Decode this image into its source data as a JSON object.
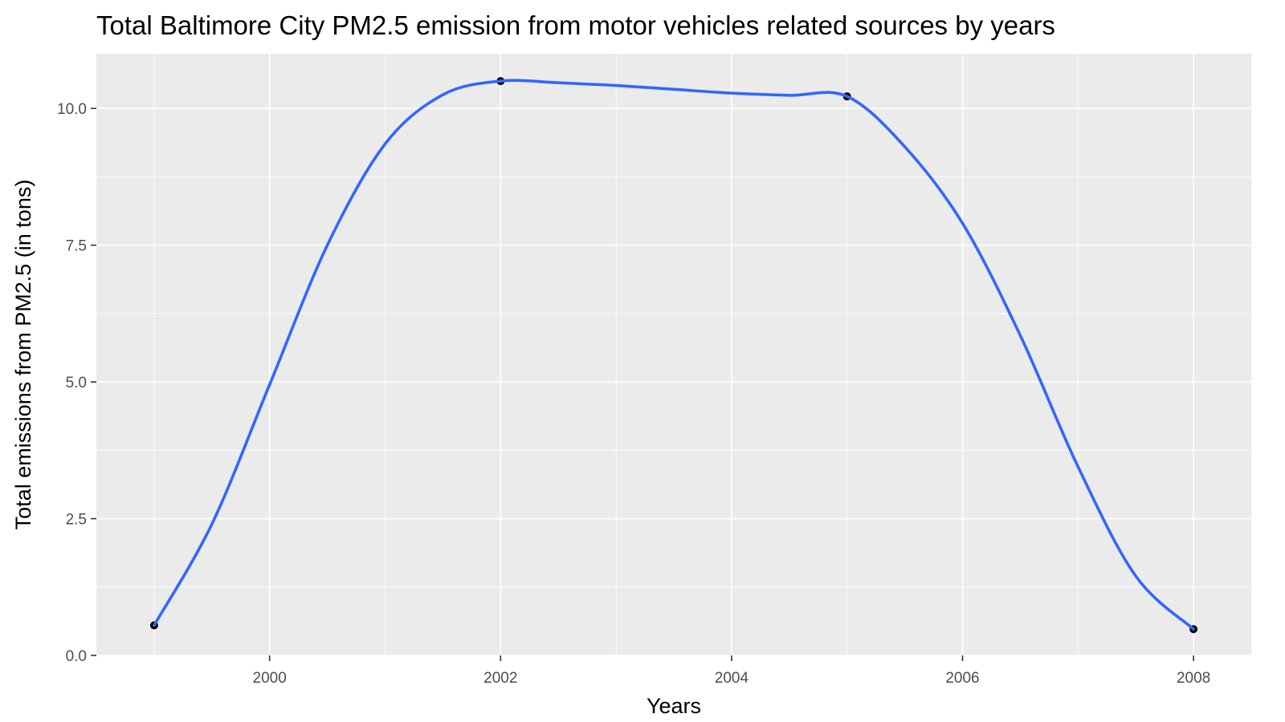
{
  "chart_data": {
    "type": "line",
    "title": "Total Baltimore City PM2.5 emission from motor vehicles related sources by years",
    "xlabel": "Years",
    "ylabel": "Total emissions from PM2.5 (in tons)",
    "xlim": [
      1998.5,
      2008.5
    ],
    "ylim": [
      0,
      11
    ],
    "x_ticks": [
      2000,
      2002,
      2004,
      2006,
      2008
    ],
    "y_ticks": [
      0,
      2.5,
      5,
      7.5,
      10
    ],
    "y_tick_labels": [
      "0.0",
      "2.5",
      "5.0",
      "7.5",
      "10.0"
    ],
    "x_minor_ticks": [
      1999,
      2001,
      2003,
      2005,
      2007
    ],
    "y_minor_ticks": [
      1.25,
      3.75,
      6.25,
      8.75
    ],
    "grid": true,
    "points": {
      "x": [
        1999,
        2002,
        2005,
        2008
      ],
      "y": [
        0.55,
        10.5,
        10.22,
        0.48
      ]
    },
    "smooth": {
      "x": [
        1999,
        1999.5,
        2000,
        2000.5,
        2001,
        2001.5,
        2002,
        2002.5,
        2003,
        2003.5,
        2004,
        2004.5,
        2005,
        2005.5,
        2006,
        2006.5,
        2007,
        2007.5,
        2008
      ],
      "y": [
        0.55,
        2.4,
        4.95,
        7.5,
        9.35,
        10.25,
        10.5,
        10.47,
        10.42,
        10.35,
        10.28,
        10.24,
        10.22,
        9.3,
        7.9,
        5.85,
        3.45,
        1.45,
        0.48
      ]
    },
    "point_color": "#000000",
    "line_color": "#3366ff",
    "panel_color": "#ebebeb"
  }
}
